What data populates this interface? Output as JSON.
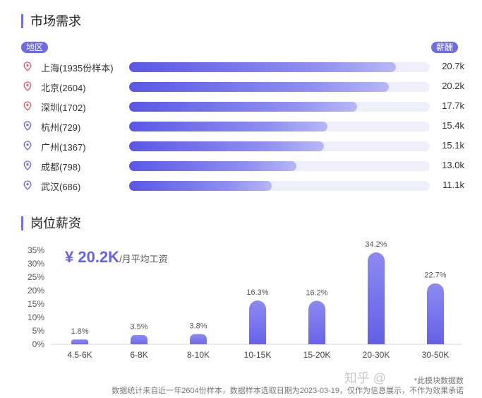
{
  "market": {
    "title": "市场需求",
    "region_label": "地区",
    "salary_label": "薪酬",
    "rows": [
      {
        "city": "上海(1935份样本)",
        "salary": "20.7k",
        "pct": 0.887,
        "pin_color": "#e05a6f"
      },
      {
        "city": "北京(2604)",
        "salary": "20.2k",
        "pct": 0.865,
        "pin_color": "#e05a6f"
      },
      {
        "city": "深圳(1702)",
        "salary": "17.7k",
        "pct": 0.758,
        "pin_color": "#e05a6f"
      },
      {
        "city": "杭州(729)",
        "salary": "15.4k",
        "pct": 0.659,
        "pin_color": "#6c6ce0"
      },
      {
        "city": "广州(1367)",
        "salary": "15.1k",
        "pct": 0.647,
        "pin_color": "#6c6ce0"
      },
      {
        "city": "成都(798)",
        "salary": "13.0k",
        "pct": 0.556,
        "pin_color": "#6c6ce0"
      },
      {
        "city": "武汉(686)",
        "salary": "11.1k",
        "pct": 0.475,
        "pin_color": "#6c6ce0"
      }
    ]
  },
  "salary_section": {
    "title": "岗位薪资",
    "avg_amount": "¥ 20.2K",
    "avg_unit": "/月平均工资"
  },
  "chart_data": {
    "type": "bar",
    "categories": [
      "4.5-6K",
      "6-8K",
      "8-10K",
      "10-15K",
      "15-20K",
      "20-30K",
      "30-50K"
    ],
    "values": [
      1.8,
      3.5,
      3.8,
      16.3,
      16.2,
      34.2,
      22.7
    ],
    "value_labels": [
      "1.8%",
      "3.5%",
      "3.8%",
      "16.3%",
      "16.2%",
      "34.2%",
      "22.7%"
    ],
    "yticks": [
      "0%",
      "5%",
      "10%",
      "15%",
      "20%",
      "25%",
      "30%",
      "35%"
    ],
    "ylim": [
      0,
      35
    ],
    "grid": false,
    "bar_color": "#6e6bea"
  },
  "footnotes": {
    "line1": "*此模块数据数",
    "line2": "数据统计来自近一年2604份样本，数据样本选取日期为2023-03-19，仅作为信息展示，不作为效果承诺"
  },
  "watermark": "知乎 @"
}
